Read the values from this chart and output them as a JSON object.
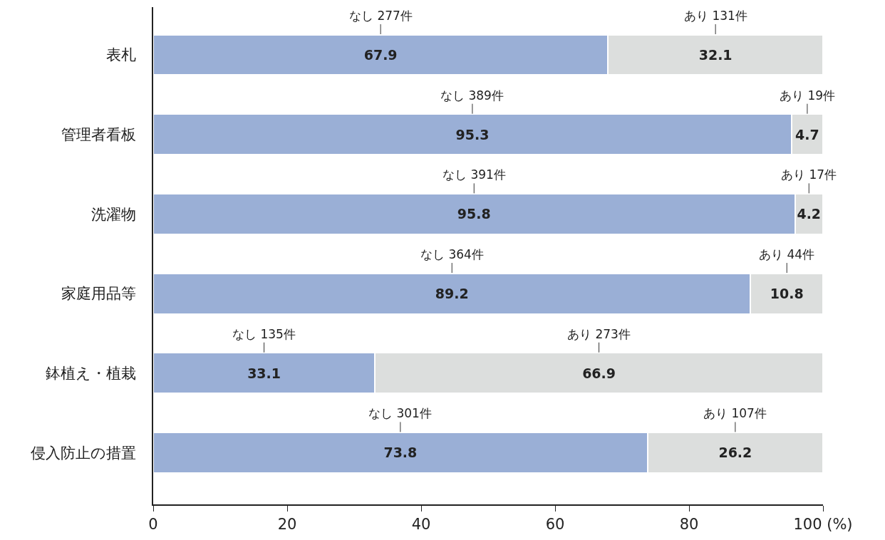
{
  "chart_data": {
    "type": "bar",
    "orientation": "horizontal",
    "stacked": true,
    "data_labels": true,
    "categories": [
      "表札",
      "管理者看板",
      "洗濯物",
      "家庭用品等",
      "鉢植え・植栽",
      "侵入防止の措置"
    ],
    "series": [
      {
        "name": null,
        "color": "#9aafd6",
        "values": [
          67.9,
          95.3,
          95.8,
          89.2,
          33.1,
          73.8
        ]
      },
      {
        "name": null,
        "color": "#dcdedd",
        "values": [
          32.1,
          4.7,
          4.2,
          10.8,
          66.9,
          26.2
        ]
      }
    ],
    "xlim": [
      0,
      100
    ],
    "xticks": [
      0,
      20,
      40,
      60,
      80,
      {
        "value": 100,
        "label": "100 (%)"
      }
    ],
    "annotations": [
      "なし 277件",
      "あり 131件",
      "なし 389件",
      "あり 19件",
      "なし 391件",
      "あり 17件",
      "なし 364件",
      "あり 44件",
      "なし 135件",
      "あり 273件",
      "なし 301件",
      "あり 107件"
    ]
  }
}
